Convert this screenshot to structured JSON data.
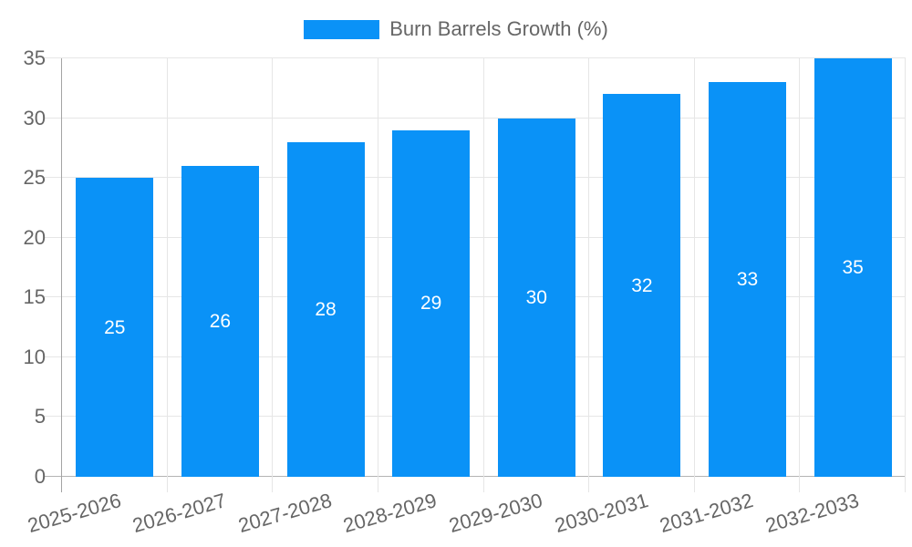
{
  "chart_data": {
    "type": "bar",
    "title": "",
    "legend_label": "Burn Barrels Growth (%)",
    "legend_position": "top",
    "categories": [
      "2025-2026",
      "2026-2027",
      "2027-2028",
      "2028-2029",
      "2029-2030",
      "2030-2031",
      "2031-2032",
      "2032-2033"
    ],
    "series": [
      {
        "name": "Burn Barrels Growth (%)",
        "values": [
          25,
          26,
          28,
          29,
          30,
          32,
          33,
          35
        ]
      }
    ],
    "value_labels": [
      "25",
      "26",
      "28",
      "29",
      "30",
      "32",
      "33",
      "35"
    ],
    "xlabel": "",
    "ylabel": "",
    "ylim": [
      0,
      35
    ],
    "yticks": [
      0,
      5,
      10,
      15,
      20,
      25,
      30,
      35
    ],
    "grid": true,
    "x_label_rotation_deg": -16,
    "colors": {
      "bar": "#0a92f7",
      "value_label": "#ffffff",
      "axis_text": "#666666",
      "grid_line": "#e6e6e6",
      "axis_border": "#a3a3a3",
      "zero_line": "#b3b3b3",
      "background": "#ffffff"
    }
  }
}
